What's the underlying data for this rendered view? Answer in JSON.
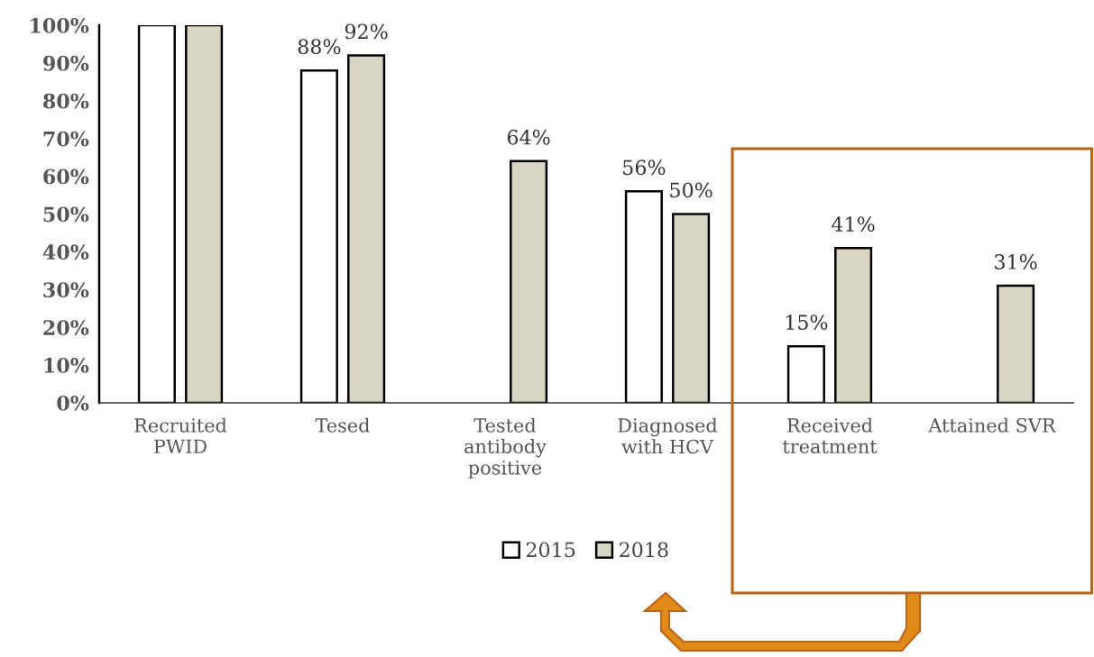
{
  "chart_data": {
    "type": "bar",
    "categories": [
      "Recruited\nPWID",
      "Tesed",
      "Tested\nantibody\npositive",
      "Diagnosed\nwith HCV",
      "Received\ntreatment",
      "Attained SVR"
    ],
    "series": [
      {
        "name": "2015",
        "color": "#ffffff",
        "values": [
          100,
          88,
          null,
          56,
          15,
          null
        ],
        "value_labels": [
          null,
          "88%",
          null,
          "56%",
          "15%",
          null
        ]
      },
      {
        "name": "2018",
        "color": "#d9d5c3",
        "values": [
          100,
          92,
          64,
          50,
          41,
          31
        ],
        "value_labels": [
          null,
          "92%",
          "64%",
          "50%",
          "41%",
          "31%"
        ]
      }
    ],
    "ylim": [
      0,
      100
    ],
    "yticks": [
      {
        "value": 0,
        "label": "0%"
      },
      {
        "value": 10,
        "label": "10%"
      },
      {
        "value": 20,
        "label": "20%"
      },
      {
        "value": 30,
        "label": "30%"
      },
      {
        "value": 40,
        "label": "40%"
      },
      {
        "value": 50,
        "label": "50%"
      },
      {
        "value": 60,
        "label": "60%"
      },
      {
        "value": 70,
        "label": "70%"
      },
      {
        "value": 80,
        "label": "80%"
      },
      {
        "value": 90,
        "label": "90%"
      },
      {
        "value": 100,
        "label": "100%"
      }
    ],
    "grid": false,
    "legend": "bottom"
  }
}
